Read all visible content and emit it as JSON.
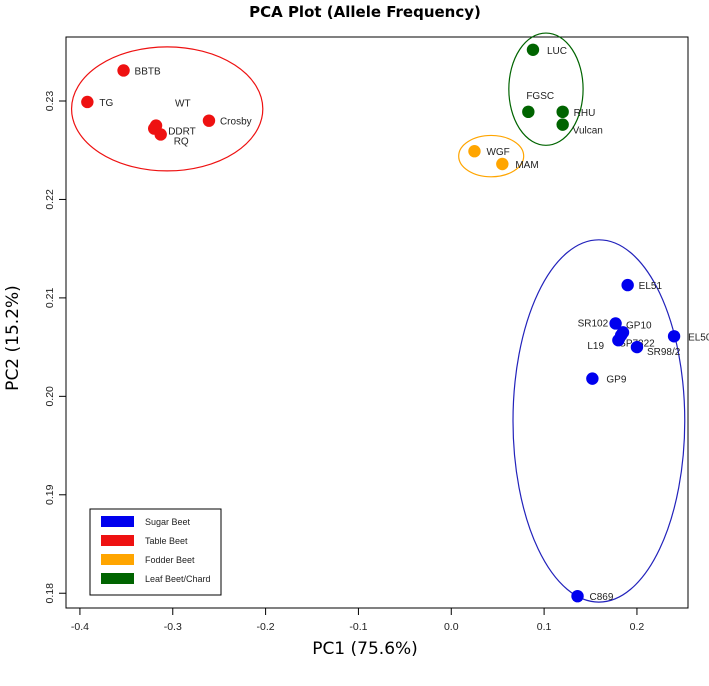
{
  "chart_data": {
    "type": "scatter",
    "title": "PCA Plot (Allele Frequency)",
    "xlabel": "PC1 (75.6%)",
    "ylabel": "PC2 (15.2%)",
    "xlim": [
      -0.415,
      0.255
    ],
    "ylim": [
      0.1785,
      0.2365
    ],
    "xticks": [
      -0.4,
      -0.3,
      -0.2,
      -0.1,
      0.0,
      0.1,
      0.2
    ],
    "xtick_labels": [
      "-0.4",
      "-0.3",
      "-0.2",
      "-0.1",
      "0.0",
      "0.1",
      "0.2"
    ],
    "yticks": [
      0.18,
      0.19,
      0.2,
      0.21,
      0.22,
      0.23
    ],
    "ytick_labels": [
      "0.18",
      "0.19",
      "0.20",
      "0.21",
      "0.22",
      "0.23"
    ],
    "grid": false,
    "legend_position": "bottom-left",
    "series": [
      {
        "name": "Sugar Beet",
        "color": "#0000ee",
        "points": [
          {
            "label": "EL51",
            "x": 0.19,
            "y": 0.2113
          },
          {
            "label": "SR102",
            "x": 0.177,
            "y": 0.2074
          },
          {
            "label": "GP10",
            "x": 0.185,
            "y": 0.2065
          },
          {
            "label": "SP7322",
            "x": 0.183,
            "y": 0.2062
          },
          {
            "label": "L19",
            "x": 0.18,
            "y": 0.2057
          },
          {
            "label": "EL50",
            "x": 0.24,
            "y": 0.2061
          },
          {
            "label": "SR98/2",
            "x": 0.2,
            "y": 0.205
          },
          {
            "label": "GP9",
            "x": 0.152,
            "y": 0.2018
          },
          {
            "label": "C869",
            "x": 0.136,
            "y": 0.1797
          }
        ]
      },
      {
        "name": "Table Beet",
        "color": "#ee1111",
        "points": [
          {
            "label": "BBTB",
            "x": -0.353,
            "y": 0.2331
          },
          {
            "label": "TG",
            "x": -0.392,
            "y": 0.2299
          },
          {
            "label": "WT",
            "x": -0.318,
            "y": 0.2275
          },
          {
            "label": "DDRT",
            "x": -0.32,
            "y": 0.2272
          },
          {
            "label": "RQ",
            "x": -0.313,
            "y": 0.2266
          },
          {
            "label": "Crosby",
            "x": -0.261,
            "y": 0.228
          }
        ]
      },
      {
        "name": "Fodder Beet",
        "color": "#ffa500",
        "points": [
          {
            "label": "WGF",
            "x": 0.025,
            "y": 0.2249
          },
          {
            "label": "MAM",
            "x": 0.055,
            "y": 0.2236
          }
        ]
      },
      {
        "name": "Leaf Beet/Chard",
        "color": "#006400",
        "points": [
          {
            "label": "LUC",
            "x": 0.088,
            "y": 0.2352
          },
          {
            "label": "FGSC",
            "x": 0.083,
            "y": 0.2289
          },
          {
            "label": "RHU",
            "x": 0.12,
            "y": 0.2289
          },
          {
            "label": "Vulcan",
            "x": 0.12,
            "y": 0.2276
          }
        ]
      }
    ],
    "groups": [
      {
        "name": "Table Beet",
        "color": "#ee1111",
        "cx": -0.306,
        "cy": 0.2292,
        "rx": 0.103,
        "ry": 0.0063
      },
      {
        "name": "Fodder Beet",
        "color": "#ffa500",
        "cx": 0.043,
        "cy": 0.2244,
        "rx": 0.035,
        "ry": 0.0021
      },
      {
        "name": "Leaf Beet/Chard",
        "color": "#006400",
        "cx": 0.102,
        "cy": 0.2312,
        "rx": 0.04,
        "ry": 0.0057
      },
      {
        "name": "Sugar Beet",
        "color": "#2222bb",
        "cx": 0.159,
        "cy": 0.1975,
        "rx": 0.0925,
        "ry": 0.0184
      }
    ],
    "legend": [
      {
        "name": "Sugar Beet",
        "color": "#0000ee"
      },
      {
        "name": "Table Beet",
        "color": "#ee1111"
      },
      {
        "name": "Fodder Beet",
        "color": "#ffa500"
      },
      {
        "name": "Leaf Beet/Chard",
        "color": "#006400"
      }
    ]
  }
}
